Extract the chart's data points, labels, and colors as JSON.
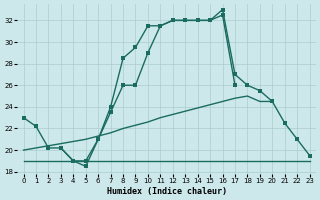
{
  "bg_color": "#cde8eb",
  "grid_color": "#aaccce",
  "line_color": "#1a6b60",
  "xlabel": "Humidex (Indice chaleur)",
  "xlim": [
    -0.5,
    23.5
  ],
  "ylim": [
    17.8,
    33.5
  ],
  "xticks": [
    0,
    1,
    2,
    3,
    4,
    5,
    6,
    7,
    8,
    9,
    10,
    11,
    12,
    13,
    14,
    15,
    16,
    17,
    18,
    19,
    20,
    21,
    22,
    23
  ],
  "yticks": [
    18,
    20,
    22,
    24,
    26,
    28,
    30,
    32
  ],
  "curve1_x": [
    0,
    1,
    2,
    3,
    4,
    5,
    6,
    7,
    8,
    9,
    10,
    11,
    12,
    13,
    14,
    15,
    16,
    17
  ],
  "curve1_y": [
    23.0,
    22.2,
    20.2,
    20.2,
    19.0,
    18.5,
    21.0,
    23.5,
    26.0,
    26.0,
    29.0,
    31.5,
    32.0,
    32.0,
    32.0,
    32.0,
    32.5,
    26.0
  ],
  "curve2_x": [
    3,
    4,
    5,
    6,
    7,
    8,
    9,
    10,
    11,
    12,
    13,
    14,
    15,
    16,
    17,
    18,
    19,
    20,
    21,
    22,
    23
  ],
  "curve2_y": [
    20.2,
    19.0,
    19.0,
    21.0,
    24.0,
    28.5,
    29.5,
    31.5,
    31.5,
    32.0,
    32.0,
    32.0,
    32.0,
    33.0,
    27.0,
    26.0,
    25.5,
    24.5,
    22.5,
    21.0,
    19.5
  ],
  "curve3_x": [
    0,
    1,
    2,
    3,
    4,
    5,
    6,
    7,
    8,
    9,
    10,
    11,
    12,
    13,
    14,
    15,
    16,
    17,
    18,
    19,
    20,
    21,
    22,
    23
  ],
  "curve3_y": [
    19.0,
    19.0,
    19.0,
    19.0,
    19.0,
    19.0,
    19.0,
    19.0,
    19.0,
    19.0,
    19.0,
    19.0,
    19.0,
    19.0,
    19.0,
    19.0,
    19.0,
    19.0,
    19.0,
    19.0,
    19.0,
    19.0,
    19.0,
    19.0
  ],
  "curve4_x": [
    0,
    1,
    2,
    3,
    4,
    5,
    6,
    7,
    8,
    9,
    10,
    11,
    12,
    13,
    14,
    15,
    16,
    17,
    18,
    19,
    20
  ],
  "curve4_y": [
    20.0,
    20.2,
    20.4,
    20.6,
    20.8,
    21.0,
    21.3,
    21.6,
    22.0,
    22.3,
    22.6,
    23.0,
    23.3,
    23.6,
    23.9,
    24.2,
    24.5,
    24.8,
    25.0,
    24.5,
    24.5
  ]
}
